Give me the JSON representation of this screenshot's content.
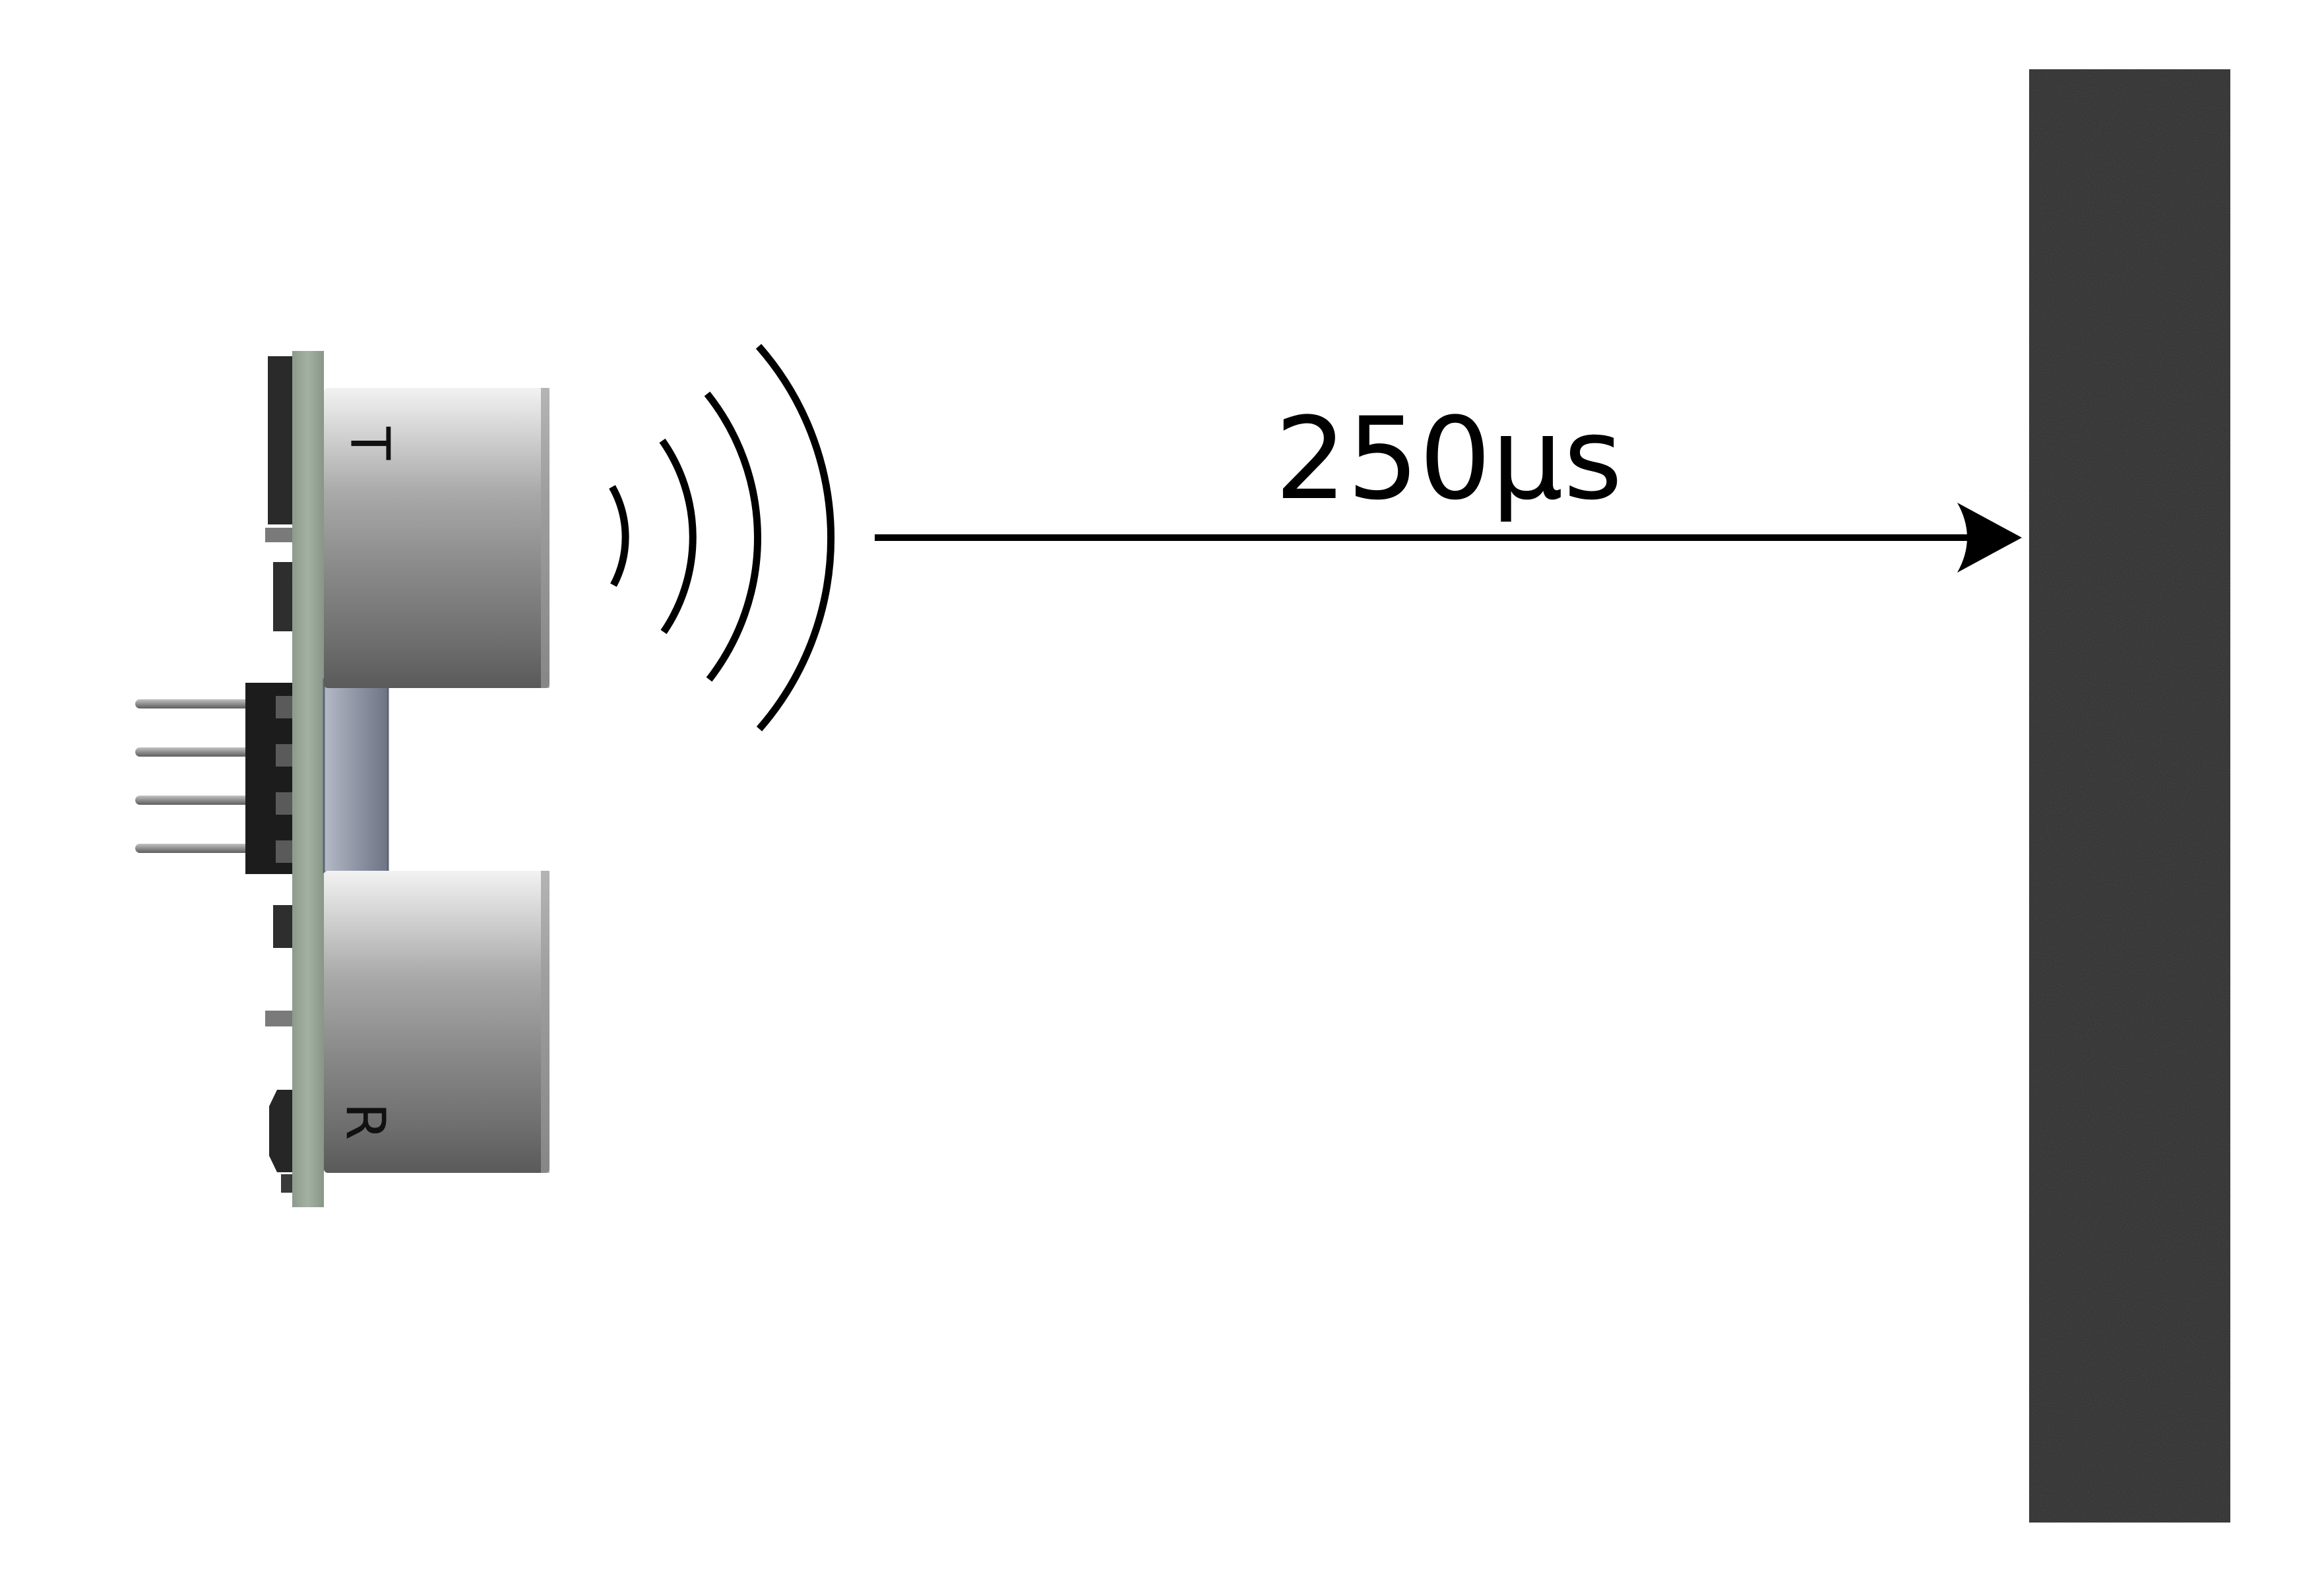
{
  "sensor": {
    "transmitter_letter": "T",
    "receiver_letter": "R"
  },
  "signal": {
    "time_label": "250µs"
  },
  "colors": {
    "pcb": "#9aa99a",
    "metal_light": "#d8d8d8",
    "metal_dark": "#6a6a6a",
    "header": "#1c1c1c",
    "pins": "#8a8a8a",
    "crystal": "#8e95a6",
    "wave": "#000000",
    "arrow": "#000000",
    "wall": "#262626"
  }
}
